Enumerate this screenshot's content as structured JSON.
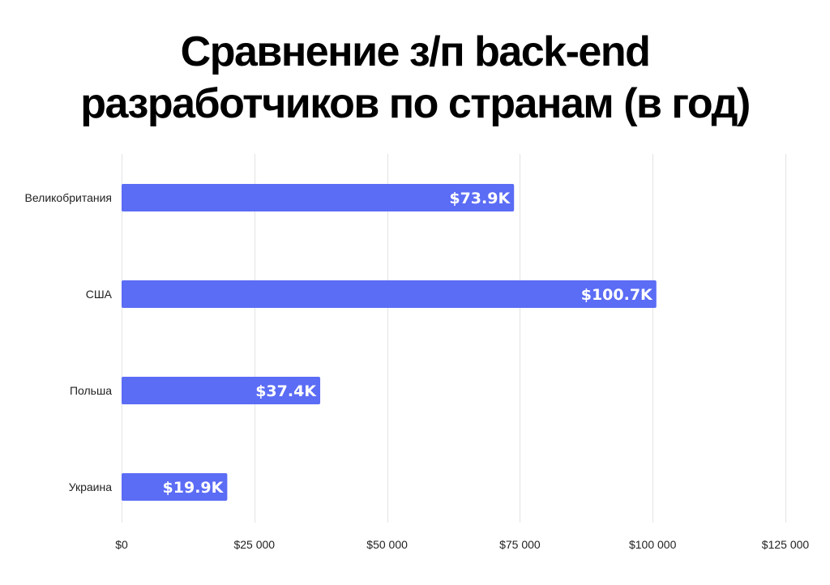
{
  "title": {
    "line1": "Сравнение з/п back-end",
    "line2": "разработчиков по странам (в год)"
  },
  "colors": {
    "bar": "#5B6CF5",
    "grid": "#E3E3E3",
    "bar_label": "#FFFFFF"
  },
  "chart_data": {
    "type": "bar",
    "orientation": "horizontal",
    "title": "Сравнение з/п back-end разработчиков по странам (в год)",
    "categories": [
      "Великобритания",
      "США",
      "Польша",
      "Украина"
    ],
    "values": [
      73900,
      100700,
      37400,
      19900
    ],
    "data_labels": [
      "$73.9K",
      "$100.7K",
      "$37.4K",
      "$19.9K"
    ],
    "xlim": [
      0,
      125000
    ],
    "xticks": [
      0,
      25000,
      50000,
      75000,
      100000,
      125000
    ],
    "xtick_labels": [
      "$0",
      "$25 000",
      "$50 000",
      "$75 000",
      "$100 000",
      "$125 000"
    ],
    "xlabel": "",
    "ylabel": "",
    "grid": true,
    "legend": "none"
  }
}
